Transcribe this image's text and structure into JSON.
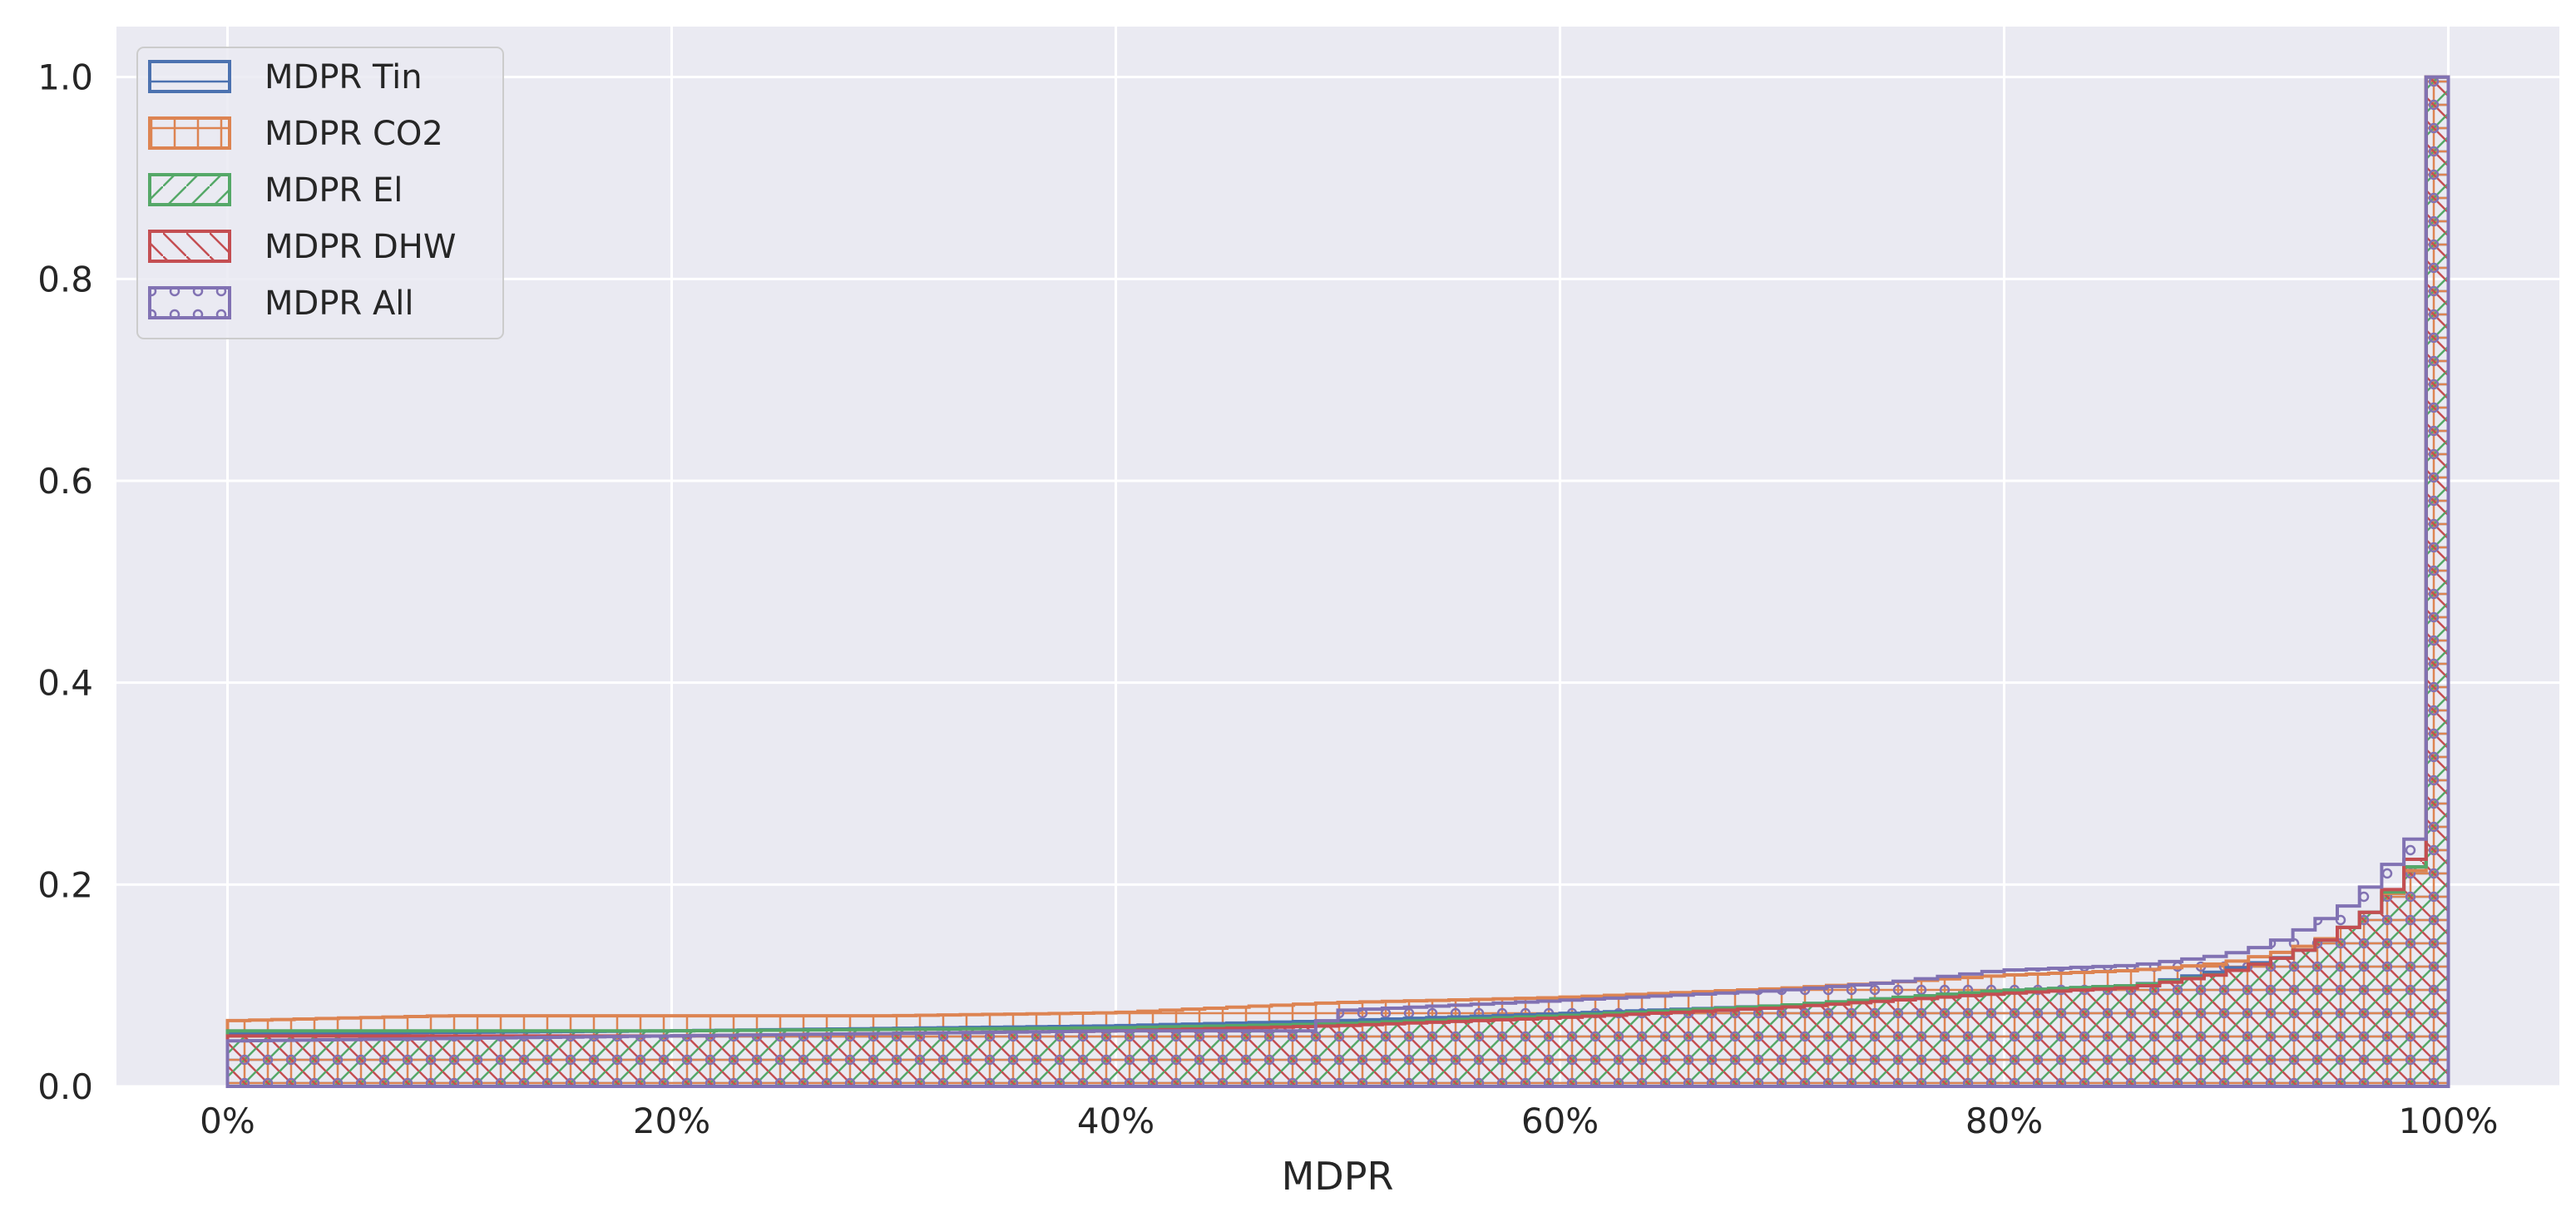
{
  "chart_data": {
    "type": "histogram-step",
    "xlabel": "MDPR",
    "ylabel": "",
    "xlim": [
      -5,
      105
    ],
    "ylim": [
      0,
      1.05
    ],
    "x_ticks": [
      {
        "value": 0,
        "label": "0%"
      },
      {
        "value": 20,
        "label": "20%"
      },
      {
        "value": 40,
        "label": "40%"
      },
      {
        "value": 60,
        "label": "60%"
      },
      {
        "value": 80,
        "label": "80%"
      },
      {
        "value": 100,
        "label": "100%"
      }
    ],
    "y_ticks": [
      {
        "value": 0,
        "label": "0.0"
      },
      {
        "value": 0.2,
        "label": "0.2"
      },
      {
        "value": 0.4,
        "label": "0.4"
      },
      {
        "value": 0.6,
        "label": "0.6"
      },
      {
        "value": 0.8,
        "label": "0.8"
      },
      {
        "value": 1.0,
        "label": "1.0"
      }
    ],
    "grid": true,
    "legend_position": "top-left",
    "bin_width": 1,
    "series": [
      {
        "name": "MDPR Tin",
        "color": "#4c72b0",
        "hatch": "horizontal",
        "anchors": [
          [
            0,
            0.052
          ],
          [
            20,
            0.055
          ],
          [
            40,
            0.06
          ],
          [
            50,
            0.065
          ],
          [
            60,
            0.072
          ],
          [
            70,
            0.08
          ],
          [
            80,
            0.095
          ],
          [
            86,
            0.1
          ],
          [
            90,
            0.115
          ],
          [
            93,
            0.13
          ],
          [
            95,
            0.15
          ],
          [
            97,
            0.18
          ],
          [
            99,
            0.23
          ],
          [
            100,
            0.23
          ]
        ]
      },
      {
        "name": "MDPR CO2",
        "color": "#dd8452",
        "hatch": "grid",
        "anchors": [
          [
            0,
            0.065
          ],
          [
            10,
            0.07
          ],
          [
            30,
            0.07
          ],
          [
            40,
            0.073
          ],
          [
            45,
            0.078
          ],
          [
            50,
            0.083
          ],
          [
            60,
            0.088
          ],
          [
            70,
            0.097
          ],
          [
            75,
            0.103
          ],
          [
            80,
            0.11
          ],
          [
            86,
            0.115
          ],
          [
            90,
            0.122
          ],
          [
            93,
            0.135
          ],
          [
            95,
            0.15
          ],
          [
            97,
            0.18
          ],
          [
            99,
            0.225
          ],
          [
            100,
            0.225
          ]
        ]
      },
      {
        "name": "MDPR El",
        "color": "#55a868",
        "hatch": "forward-diagonal",
        "anchors": [
          [
            0,
            0.055
          ],
          [
            20,
            0.055
          ],
          [
            40,
            0.058
          ],
          [
            50,
            0.062
          ],
          [
            60,
            0.07
          ],
          [
            70,
            0.08
          ],
          [
            80,
            0.095
          ],
          [
            86,
            0.1
          ],
          [
            90,
            0.112
          ],
          [
            93,
            0.13
          ],
          [
            95,
            0.15
          ],
          [
            97,
            0.18
          ],
          [
            99,
            0.23
          ],
          [
            100,
            0.23
          ]
        ]
      },
      {
        "name": "MDPR DHW",
        "color": "#c44e52",
        "hatch": "back-diagonal",
        "anchors": [
          [
            0,
            0.05
          ],
          [
            20,
            0.05
          ],
          [
            40,
            0.055
          ],
          [
            50,
            0.06
          ],
          [
            60,
            0.068
          ],
          [
            70,
            0.078
          ],
          [
            80,
            0.092
          ],
          [
            86,
            0.098
          ],
          [
            90,
            0.112
          ],
          [
            93,
            0.13
          ],
          [
            95,
            0.15
          ],
          [
            97,
            0.18
          ],
          [
            99,
            0.24
          ],
          [
            100,
            0.24
          ]
        ]
      },
      {
        "name": "MDPR All",
        "color": "#8172b3",
        "hatch": "circles",
        "anchors": [
          [
            0,
            0.045
          ],
          [
            20,
            0.05
          ],
          [
            40,
            0.055
          ],
          [
            49,
            0.055
          ],
          [
            50,
            0.075
          ],
          [
            60,
            0.085
          ],
          [
            70,
            0.095
          ],
          [
            75,
            0.103
          ],
          [
            80,
            0.115
          ],
          [
            86,
            0.12
          ],
          [
            90,
            0.13
          ],
          [
            92,
            0.14
          ],
          [
            94,
            0.16
          ],
          [
            96,
            0.185
          ],
          [
            97,
            0.21
          ],
          [
            98,
            0.23
          ],
          [
            99,
            0.26
          ],
          [
            100,
            0.26
          ]
        ]
      }
    ],
    "final_bin_value": 1.0
  }
}
